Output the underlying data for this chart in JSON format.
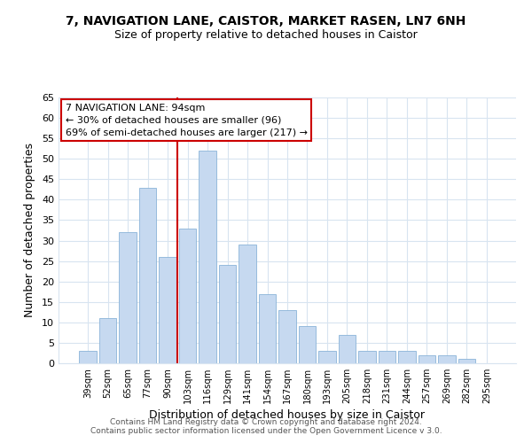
{
  "title_line1": "7, NAVIGATION LANE, CAISTOR, MARKET RASEN, LN7 6NH",
  "title_line2": "Size of property relative to detached houses in Caistor",
  "xlabel": "Distribution of detached houses by size in Caistor",
  "ylabel": "Number of detached properties",
  "bar_labels": [
    "39sqm",
    "52sqm",
    "65sqm",
    "77sqm",
    "90sqm",
    "103sqm",
    "116sqm",
    "129sqm",
    "141sqm",
    "154sqm",
    "167sqm",
    "180sqm",
    "193sqm",
    "205sqm",
    "218sqm",
    "231sqm",
    "244sqm",
    "257sqm",
    "269sqm",
    "282sqm",
    "295sqm"
  ],
  "bar_values": [
    3,
    11,
    32,
    43,
    26,
    33,
    52,
    24,
    29,
    17,
    13,
    9,
    3,
    7,
    3,
    3,
    3,
    2,
    2,
    1,
    0
  ],
  "bar_color": "#c6d9f0",
  "bar_edgecolor": "#8ab4d8",
  "vline_x": 4.5,
  "vline_color": "#cc0000",
  "annotation_box_text": "7 NAVIGATION LANE: 94sqm\n← 30% of detached houses are smaller (96)\n69% of semi-detached houses are larger (217) →",
  "ylim": [
    0,
    65
  ],
  "yticks": [
    0,
    5,
    10,
    15,
    20,
    25,
    30,
    35,
    40,
    45,
    50,
    55,
    60,
    65
  ],
  "footer_line1": "Contains HM Land Registry data © Crown copyright and database right 2024.",
  "footer_line2": "Contains public sector information licensed under the Open Government Licence v 3.0.",
  "background_color": "#ffffff",
  "grid_color": "#d8e4f0"
}
